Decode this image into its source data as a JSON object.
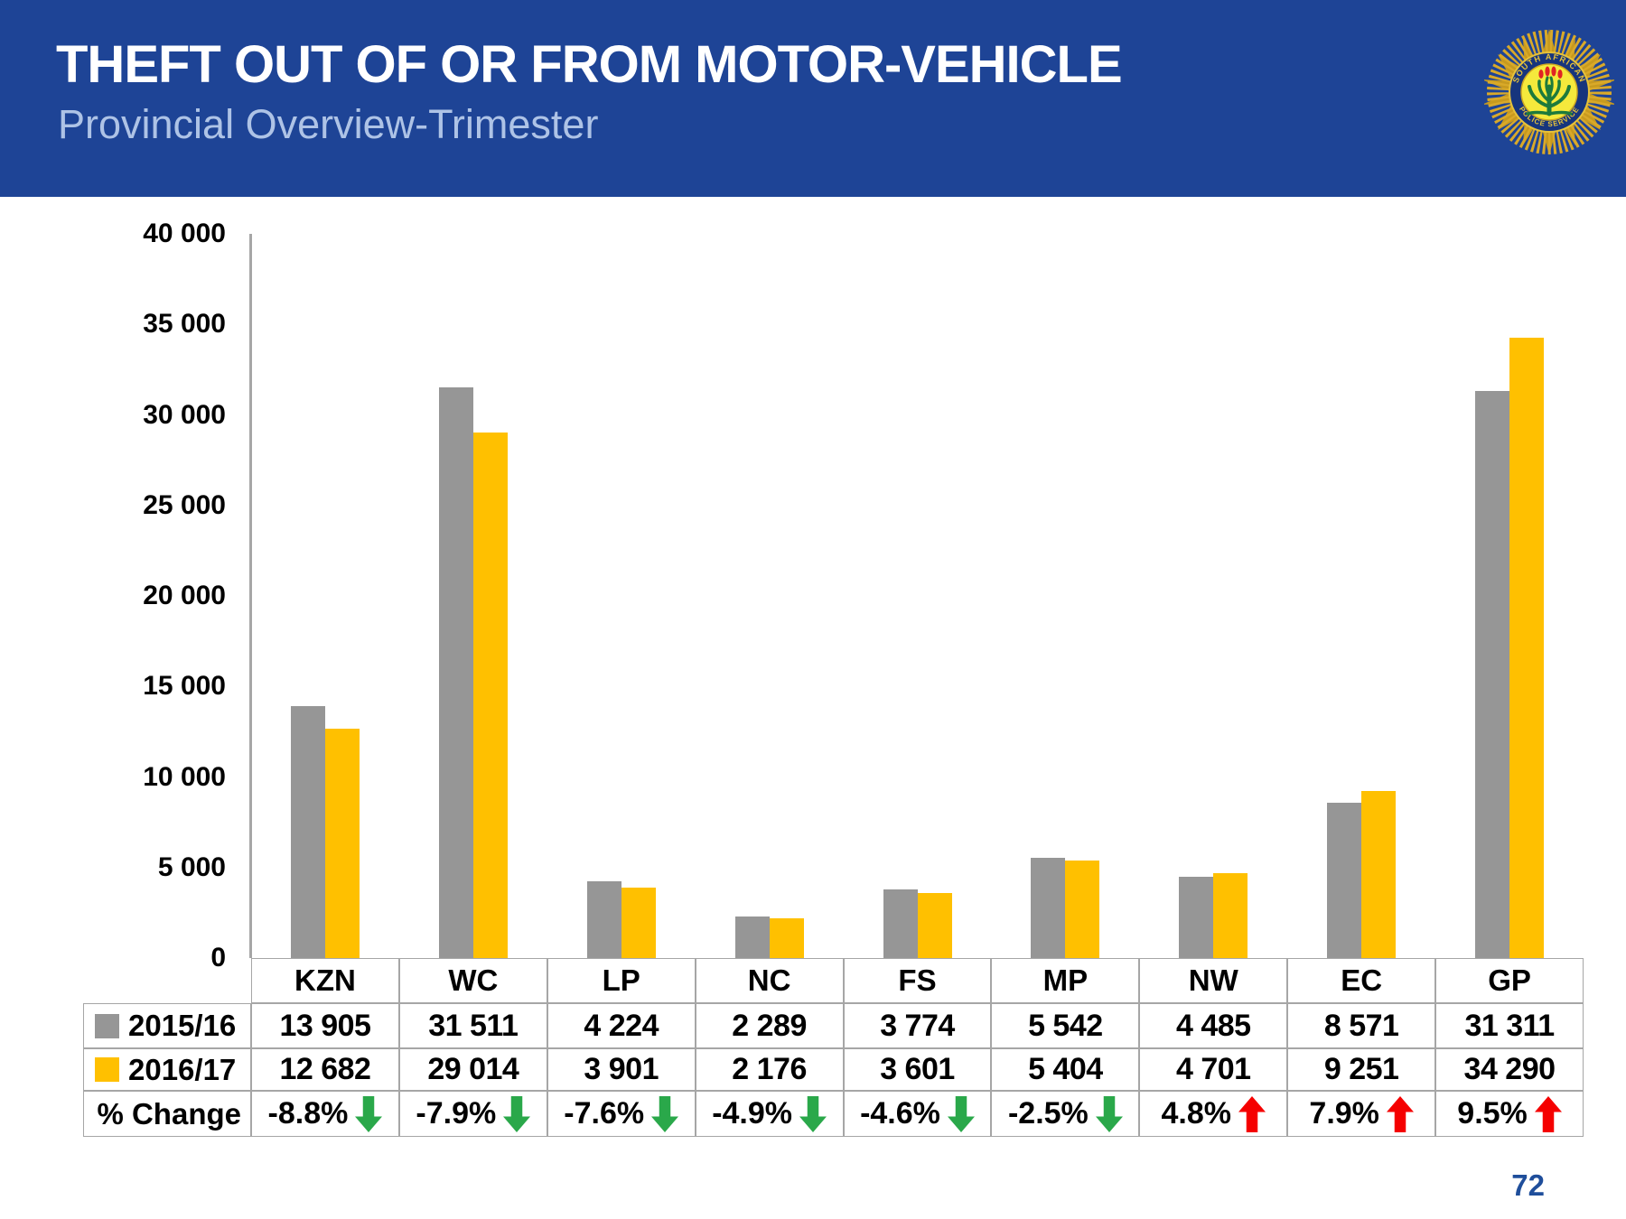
{
  "header": {
    "title": "THEFT OUT OF OR FROM MOTOR-VEHICLE",
    "subtitle": "Provincial Overview-Trimester",
    "background_color": "#1e4496",
    "title_color": "#ffffff",
    "subtitle_color": "#aec3e6",
    "logo": {
      "name": "saps-badge",
      "ring_text_top": "SOUTH AFRICAN",
      "ring_text_bottom": "POLICE SERVICE",
      "star_color": "#d9a929",
      "ring_color": "#17357d",
      "center_color": "#f5e93c",
      "plant_color": "#1d7a3c",
      "flower_color": "#e02424"
    }
  },
  "page_number": "72",
  "chart_data": {
    "type": "bar",
    "title": "",
    "xlabel": "",
    "ylabel": "",
    "grid": false,
    "legend_position": "table-left",
    "ylim": [
      0,
      40000
    ],
    "yticks": {
      "values": [
        0,
        5000,
        10000,
        15000,
        20000,
        25000,
        30000,
        35000,
        40000
      ],
      "labels": [
        "0",
        "5 000",
        "10 000",
        "15 000",
        "20 000",
        "25 000",
        "30 000",
        "35 000",
        "40 000"
      ]
    },
    "categories": [
      "KZN",
      "WC",
      "LP",
      "NC",
      "FS",
      "MP",
      "NW",
      "EC",
      "GP"
    ],
    "series": [
      {
        "name": "2015/16",
        "color": "#969696",
        "values": [
          13905,
          31511,
          4224,
          2289,
          3774,
          5542,
          4485,
          8571,
          31311
        ],
        "labels": [
          "13 905",
          "31 511",
          "4 224",
          "2 289",
          "3 774",
          "5 542",
          "4 485",
          "8 571",
          "31 311"
        ]
      },
      {
        "name": "2016/17",
        "color": "#ffc000",
        "values": [
          12682,
          29014,
          3901,
          2176,
          3601,
          5404,
          4701,
          9251,
          34290
        ],
        "labels": [
          "12 682",
          "29 014",
          "3 901",
          "2 176",
          "3 601",
          "5 404",
          "4 701",
          "9 251",
          "34 290"
        ]
      }
    ],
    "pct_change": {
      "label": "% Change",
      "values": [
        "-8.8%",
        "-7.9%",
        "-7.6%",
        "-4.9%",
        "-4.6%",
        "-2.5%",
        "4.8%",
        "7.9%",
        "9.5%"
      ],
      "directions": [
        "down",
        "down",
        "down",
        "down",
        "down",
        "down",
        "up",
        "up",
        "up"
      ],
      "up_color": "#f50000",
      "down_color": "#2aa84a"
    }
  }
}
